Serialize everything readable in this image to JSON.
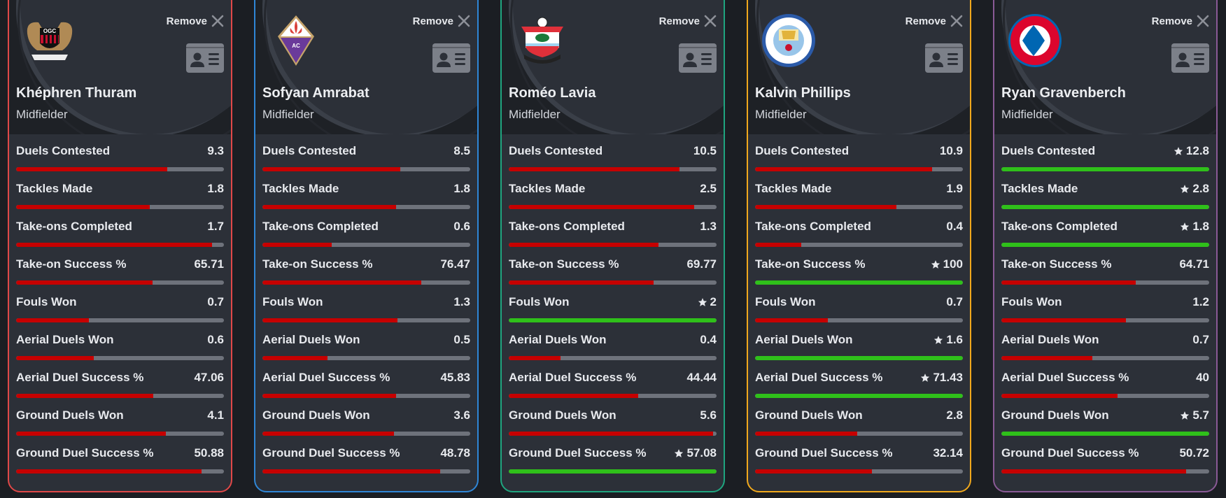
{
  "remove_label": "Remove",
  "colors": {
    "bar_fill": "#c60000",
    "bar_best": "#2fc01a",
    "bar_track": "#6e727b"
  },
  "players": [
    {
      "name": "Khéphren Thuram",
      "position": "Midfielder",
      "club": "OGC Nice",
      "logo_icon": "ogc-nice-crest",
      "border_color": "#e04848",
      "stats": [
        {
          "label": "Duels Contested",
          "value": "9.3",
          "pct": 72.7,
          "best": false
        },
        {
          "label": "Tackles Made",
          "value": "1.8",
          "pct": 64.3,
          "best": false
        },
        {
          "label": "Take-ons Completed",
          "value": "1.7",
          "pct": 94.4,
          "best": false
        },
        {
          "label": "Take-on Success %",
          "value": "65.71",
          "pct": 65.7,
          "best": false
        },
        {
          "label": "Fouls Won",
          "value": "0.7",
          "pct": 35,
          "best": false
        },
        {
          "label": "Aerial Duels Won",
          "value": "0.6",
          "pct": 37.5,
          "best": false
        },
        {
          "label": "Aerial Duel Success %",
          "value": "47.06",
          "pct": 65.9,
          "best": false
        },
        {
          "label": "Ground Duels Won",
          "value": "4.1",
          "pct": 71.9,
          "best": false
        },
        {
          "label": "Ground Duel Success %",
          "value": "50.88",
          "pct": 89.1,
          "best": false
        }
      ]
    },
    {
      "name": "Sofyan Amrabat",
      "position": "Midfielder",
      "club": "ACF Fiorentina",
      "logo_icon": "fiorentina-crest",
      "border_color": "#2f86d6",
      "stats": [
        {
          "label": "Duels Contested",
          "value": "8.5",
          "pct": 66.4,
          "best": false
        },
        {
          "label": "Tackles Made",
          "value": "1.8",
          "pct": 64.3,
          "best": false
        },
        {
          "label": "Take-ons Completed",
          "value": "0.6",
          "pct": 33.3,
          "best": false
        },
        {
          "label": "Take-on Success %",
          "value": "76.47",
          "pct": 76.5,
          "best": false
        },
        {
          "label": "Fouls Won",
          "value": "1.3",
          "pct": 65,
          "best": false
        },
        {
          "label": "Aerial Duels Won",
          "value": "0.5",
          "pct": 31.3,
          "best": false
        },
        {
          "label": "Aerial Duel Success %",
          "value": "45.83",
          "pct": 64.2,
          "best": false
        },
        {
          "label": "Ground Duels Won",
          "value": "3.6",
          "pct": 63.2,
          "best": false
        },
        {
          "label": "Ground Duel Success %",
          "value": "48.78",
          "pct": 85.5,
          "best": false
        }
      ]
    },
    {
      "name": "Roméo Lavia",
      "position": "Midfielder",
      "club": "Southampton FC",
      "logo_icon": "southampton-crest",
      "border_color": "#1fa57f",
      "stats": [
        {
          "label": "Duels Contested",
          "value": "10.5",
          "pct": 82.0,
          "best": false
        },
        {
          "label": "Tackles Made",
          "value": "2.5",
          "pct": 89.3,
          "best": false
        },
        {
          "label": "Take-ons Completed",
          "value": "1.3",
          "pct": 72.2,
          "best": false
        },
        {
          "label": "Take-on Success %",
          "value": "69.77",
          "pct": 69.8,
          "best": false
        },
        {
          "label": "Fouls Won",
          "value": "2",
          "pct": 100,
          "best": true
        },
        {
          "label": "Aerial Duels Won",
          "value": "0.4",
          "pct": 25,
          "best": false
        },
        {
          "label": "Aerial Duel Success %",
          "value": "44.44",
          "pct": 62.2,
          "best": false
        },
        {
          "label": "Ground Duels Won",
          "value": "5.6",
          "pct": 98.2,
          "best": false
        },
        {
          "label": "Ground Duel Success %",
          "value": "57.08",
          "pct": 100,
          "best": true
        }
      ]
    },
    {
      "name": "Kalvin Phillips",
      "position": "Midfielder",
      "club": "Manchester City",
      "logo_icon": "man-city-crest",
      "border_color": "#f0a81c",
      "stats": [
        {
          "label": "Duels Contested",
          "value": "10.9",
          "pct": 85.2,
          "best": false
        },
        {
          "label": "Tackles Made",
          "value": "1.9",
          "pct": 67.9,
          "best": false
        },
        {
          "label": "Take-ons Completed",
          "value": "0.4",
          "pct": 22.2,
          "best": false
        },
        {
          "label": "Take-on Success %",
          "value": "100",
          "pct": 100,
          "best": true
        },
        {
          "label": "Fouls Won",
          "value": "0.7",
          "pct": 35,
          "best": false
        },
        {
          "label": "Aerial Duels Won",
          "value": "1.6",
          "pct": 100,
          "best": true
        },
        {
          "label": "Aerial Duel Success %",
          "value": "71.43",
          "pct": 100,
          "best": true
        },
        {
          "label": "Ground Duels Won",
          "value": "2.8",
          "pct": 49.1,
          "best": false
        },
        {
          "label": "Ground Duel Success %",
          "value": "32.14",
          "pct": 56.3,
          "best": false
        }
      ]
    },
    {
      "name": "Ryan Gravenberch",
      "position": "Midfielder",
      "club": "FC Bayern München",
      "logo_icon": "bayern-crest",
      "border_color": "#8a5a96",
      "stats": [
        {
          "label": "Duels Contested",
          "value": "12.8",
          "pct": 100,
          "best": true
        },
        {
          "label": "Tackles Made",
          "value": "2.8",
          "pct": 100,
          "best": true
        },
        {
          "label": "Take-ons Completed",
          "value": "1.8",
          "pct": 100,
          "best": true
        },
        {
          "label": "Take-on Success %",
          "value": "64.71",
          "pct": 64.7,
          "best": false
        },
        {
          "label": "Fouls Won",
          "value": "1.2",
          "pct": 60,
          "best": false
        },
        {
          "label": "Aerial Duels Won",
          "value": "0.7",
          "pct": 43.8,
          "best": false
        },
        {
          "label": "Aerial Duel Success %",
          "value": "40",
          "pct": 56.0,
          "best": false
        },
        {
          "label": "Ground Duels Won",
          "value": "5.7",
          "pct": 100,
          "best": true
        },
        {
          "label": "Ground Duel Success %",
          "value": "50.72",
          "pct": 88.9,
          "best": false
        }
      ]
    }
  ]
}
